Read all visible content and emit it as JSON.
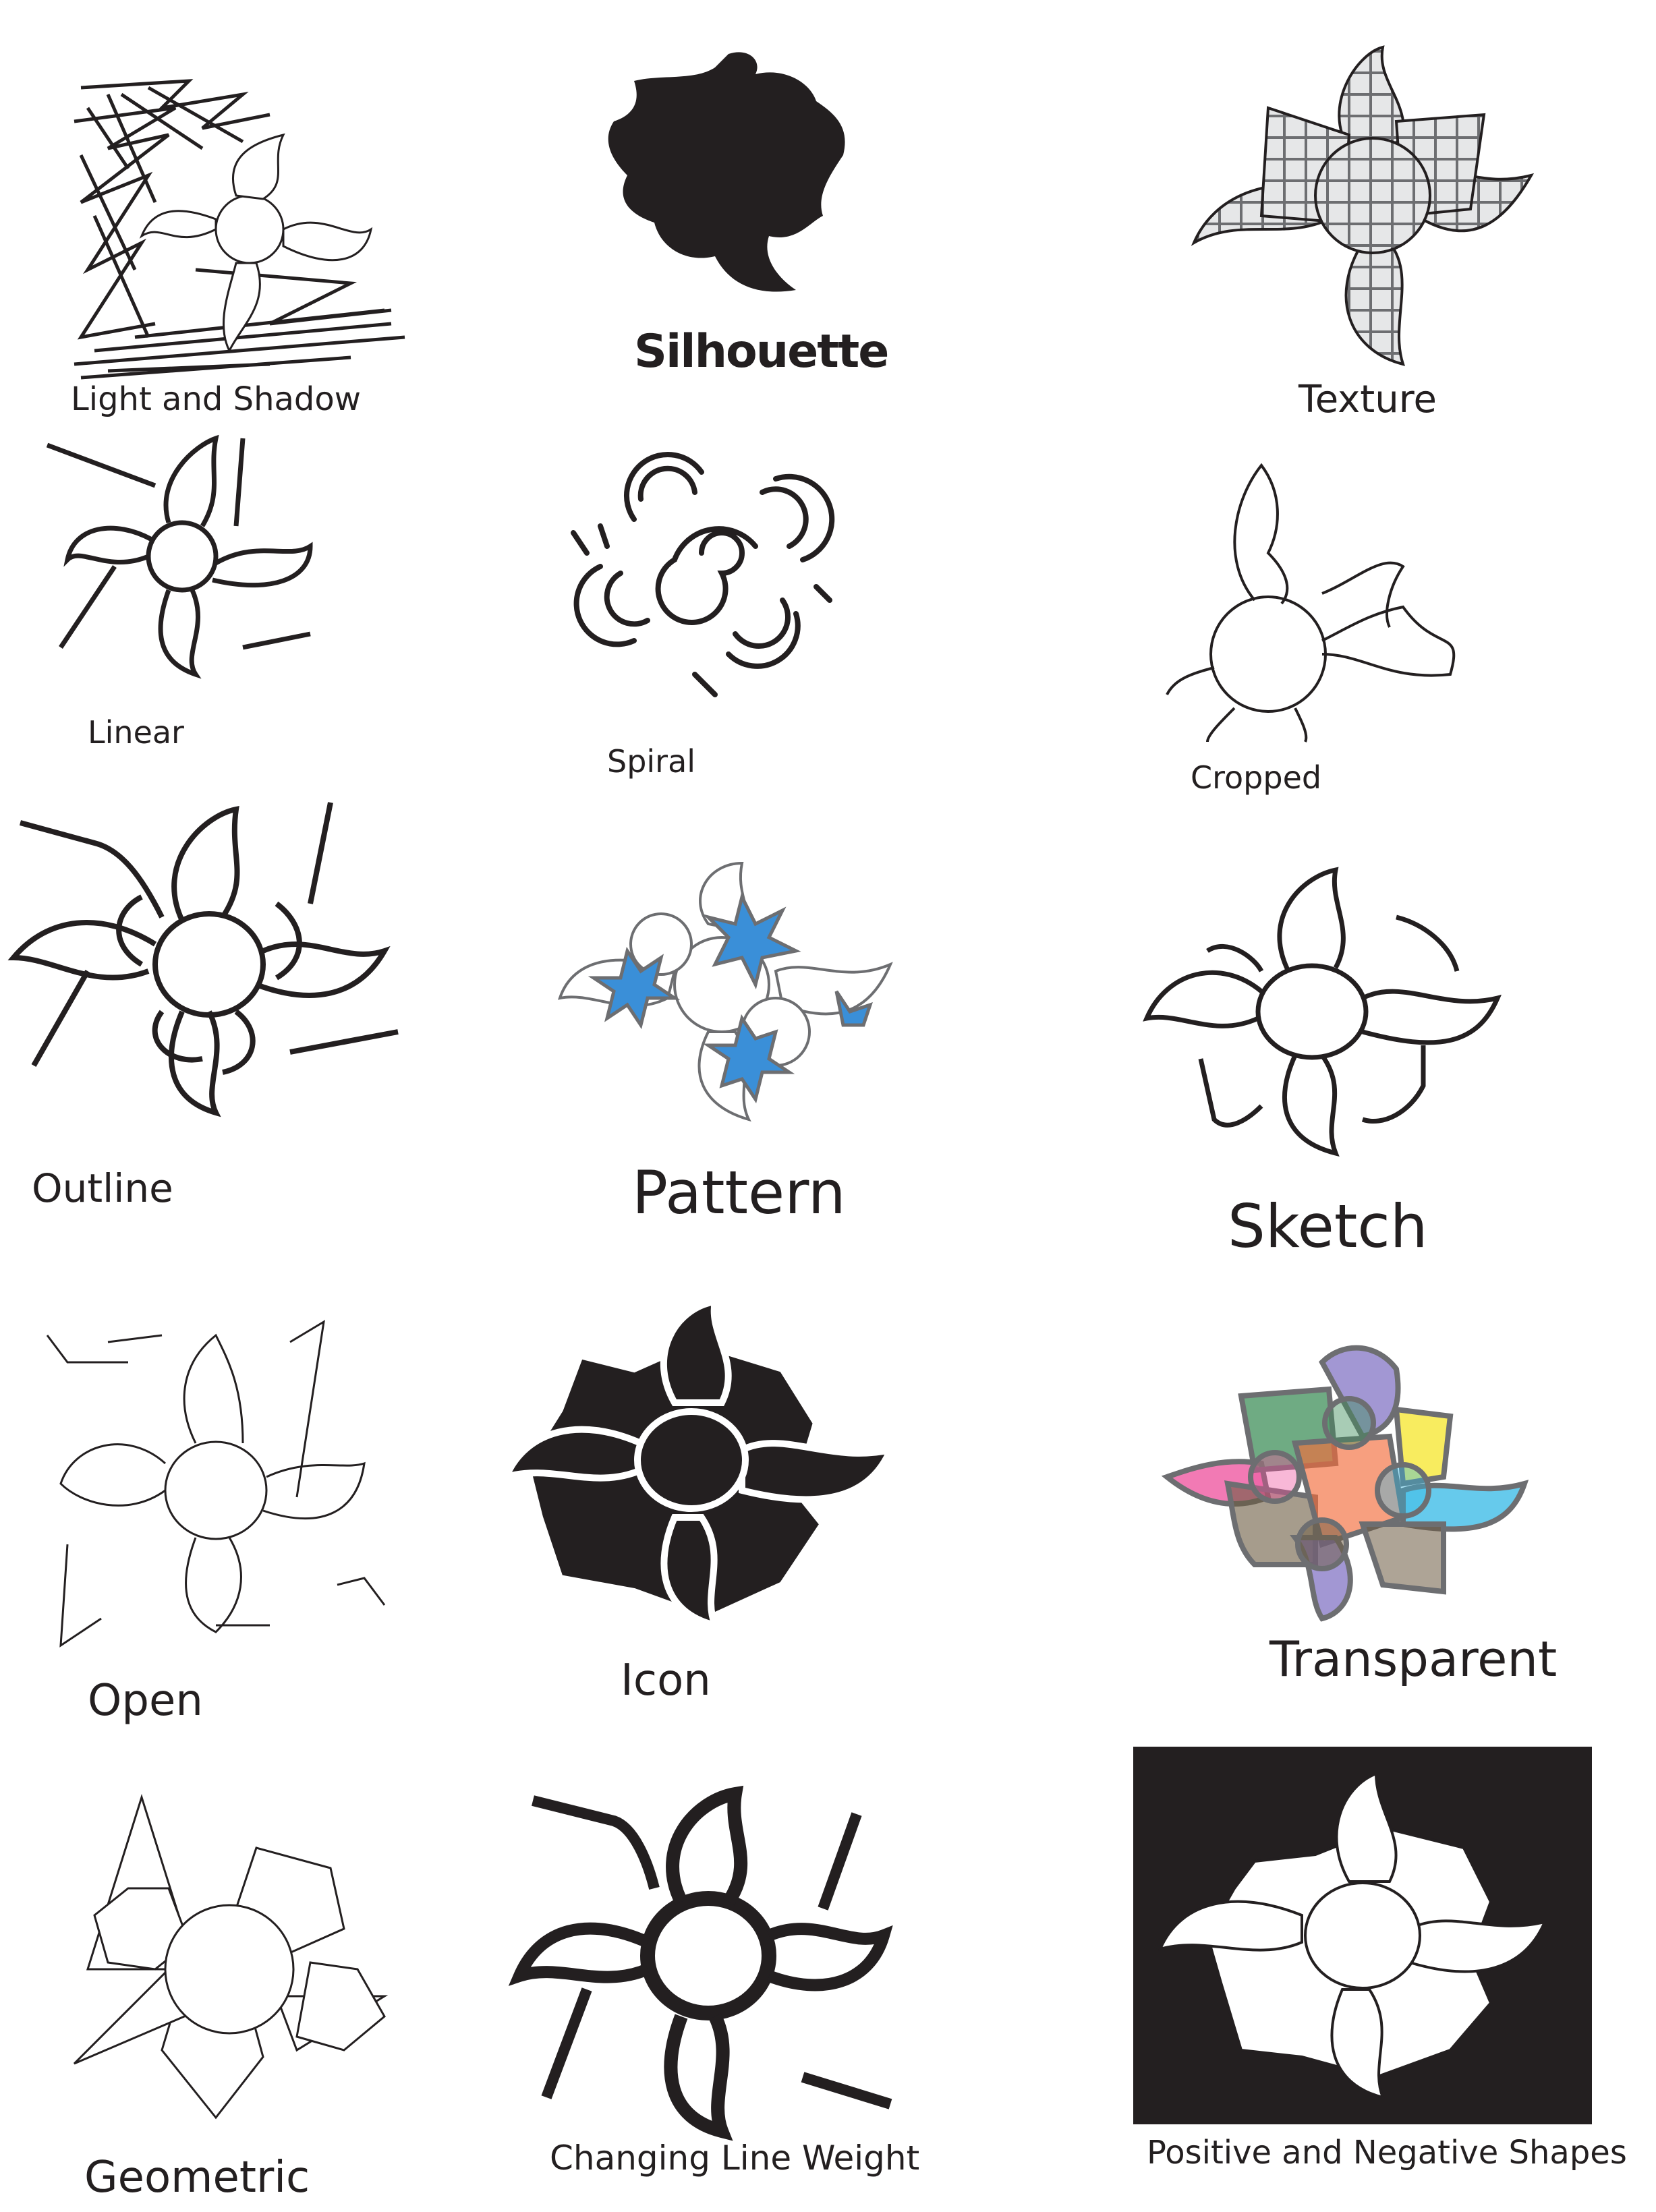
{
  "labels": {
    "light_and_shadow": "Light and Shadow",
    "silhouette": "Silhouette",
    "texture": "Texture",
    "linear": "Linear",
    "spiral": "Spiral",
    "cropped": "Cropped",
    "outline": "Outline",
    "pattern": "Pattern",
    "sketch": "Sketch",
    "open": "Open",
    "icon": "Icon",
    "transparent": "Transparent",
    "geometric": "Geometric",
    "changing_line_weight": "Changing Line Weight",
    "positive_and_negative_shapes": "Positive and Negative Shapes"
  },
  "colors": {
    "ink": "#231f20",
    "pattern_blue": "#3a8fd8",
    "transparent_pink": "#ee4e9b",
    "transparent_green": "#3f8f5a",
    "transparent_purple": "#7b6bc0",
    "transparent_yellow": "#f5e52a",
    "transparent_cyan": "#33b8e6",
    "transparent_orange": "#f26b3a",
    "transparent_brown": "#6b5a3f"
  }
}
